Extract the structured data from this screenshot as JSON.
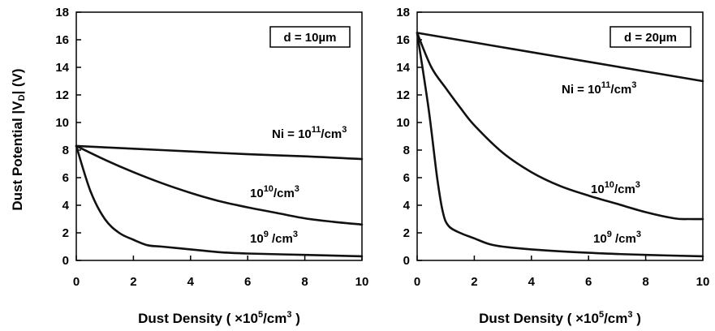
{
  "ylabel": {
    "main": "Dust Potential   |V",
    "sub": "D",
    "tail": "|  (V)"
  },
  "xlabel": {
    "main": "Dust Density   ( ×10",
    "sup": "5",
    "mid": "/cm",
    "sup2": "3",
    "tail": " )"
  },
  "chart_data": [
    {
      "type": "line",
      "box_label": "d = 10µm",
      "xlim": [
        0,
        10
      ],
      "ylim": [
        0,
        18
      ],
      "xticks": [
        0,
        2,
        4,
        6,
        8,
        10
      ],
      "yticks": [
        0,
        2,
        4,
        6,
        8,
        10,
        12,
        14,
        16,
        18
      ],
      "series": [
        {
          "name": "Ni = 10^11/cm^3",
          "x": [
            0,
            2,
            4,
            6,
            8,
            10
          ],
          "y": [
            8.3,
            8.1,
            7.9,
            7.7,
            7.55,
            7.35
          ]
        },
        {
          "name": "10^10/cm^3",
          "x": [
            0,
            1,
            2,
            3,
            4,
            5,
            6,
            7,
            8,
            9,
            10
          ],
          "y": [
            8.3,
            7.3,
            6.4,
            5.6,
            4.9,
            4.3,
            3.85,
            3.45,
            3.05,
            2.8,
            2.6
          ]
        },
        {
          "name": "10^9/cm^3",
          "x": [
            0,
            0.5,
            1,
            1.5,
            2,
            2.5,
            3,
            4,
            5,
            6,
            8,
            10
          ],
          "y": [
            8.3,
            5.0,
            3.0,
            2.0,
            1.5,
            1.1,
            1.0,
            0.8,
            0.6,
            0.5,
            0.4,
            0.3
          ]
        }
      ],
      "annotations": [
        {
          "base": "Ni = 10",
          "exp": "11",
          "unit": "/cm",
          "unit_exp": "3"
        },
        {
          "base": "10",
          "exp": "10",
          "unit": "/cm",
          "unit_exp": "3"
        },
        {
          "base": "10",
          "exp": "9",
          "unit": " /cm",
          "unit_exp": "3"
        }
      ]
    },
    {
      "type": "line",
      "box_label": "d = 20µm",
      "xlim": [
        0,
        10
      ],
      "ylim": [
        0,
        18
      ],
      "xticks": [
        0,
        2,
        4,
        6,
        8,
        10
      ],
      "yticks": [
        0,
        2,
        4,
        6,
        8,
        10,
        12,
        14,
        16,
        18
      ],
      "series": [
        {
          "name": "Ni = 10^11/cm^3",
          "x": [
            0,
            2,
            4,
            6,
            8,
            10
          ],
          "y": [
            16.5,
            15.8,
            15.1,
            14.4,
            13.7,
            13.0
          ]
        },
        {
          "name": "10^10/cm^3",
          "x": [
            0,
            0.5,
            1,
            1.5,
            2,
            3,
            4,
            5,
            6,
            7,
            8,
            9,
            9.5,
            10
          ],
          "y": [
            16.5,
            14.0,
            12.5,
            11.1,
            9.8,
            7.8,
            6.4,
            5.4,
            4.7,
            4.1,
            3.5,
            3.05,
            3.0,
            3.0
          ]
        },
        {
          "name": "10^9/cm^3",
          "x": [
            0,
            0.4,
            0.7,
            0.9,
            1.1,
            1.5,
            2,
            2.5,
            3,
            4,
            6,
            8,
            10
          ],
          "y": [
            16.5,
            11.0,
            6.0,
            3.5,
            2.5,
            2.0,
            1.6,
            1.2,
            1.0,
            0.8,
            0.55,
            0.4,
            0.3
          ]
        }
      ],
      "annotations": [
        {
          "base": "Ni = 10",
          "exp": "11",
          "unit": "/cm",
          "unit_exp": "3"
        },
        {
          "base": "10",
          "exp": "10",
          "unit": "/cm",
          "unit_exp": "3"
        },
        {
          "base": "10",
          "exp": "9",
          "unit": " /cm",
          "unit_exp": "3"
        }
      ]
    }
  ]
}
